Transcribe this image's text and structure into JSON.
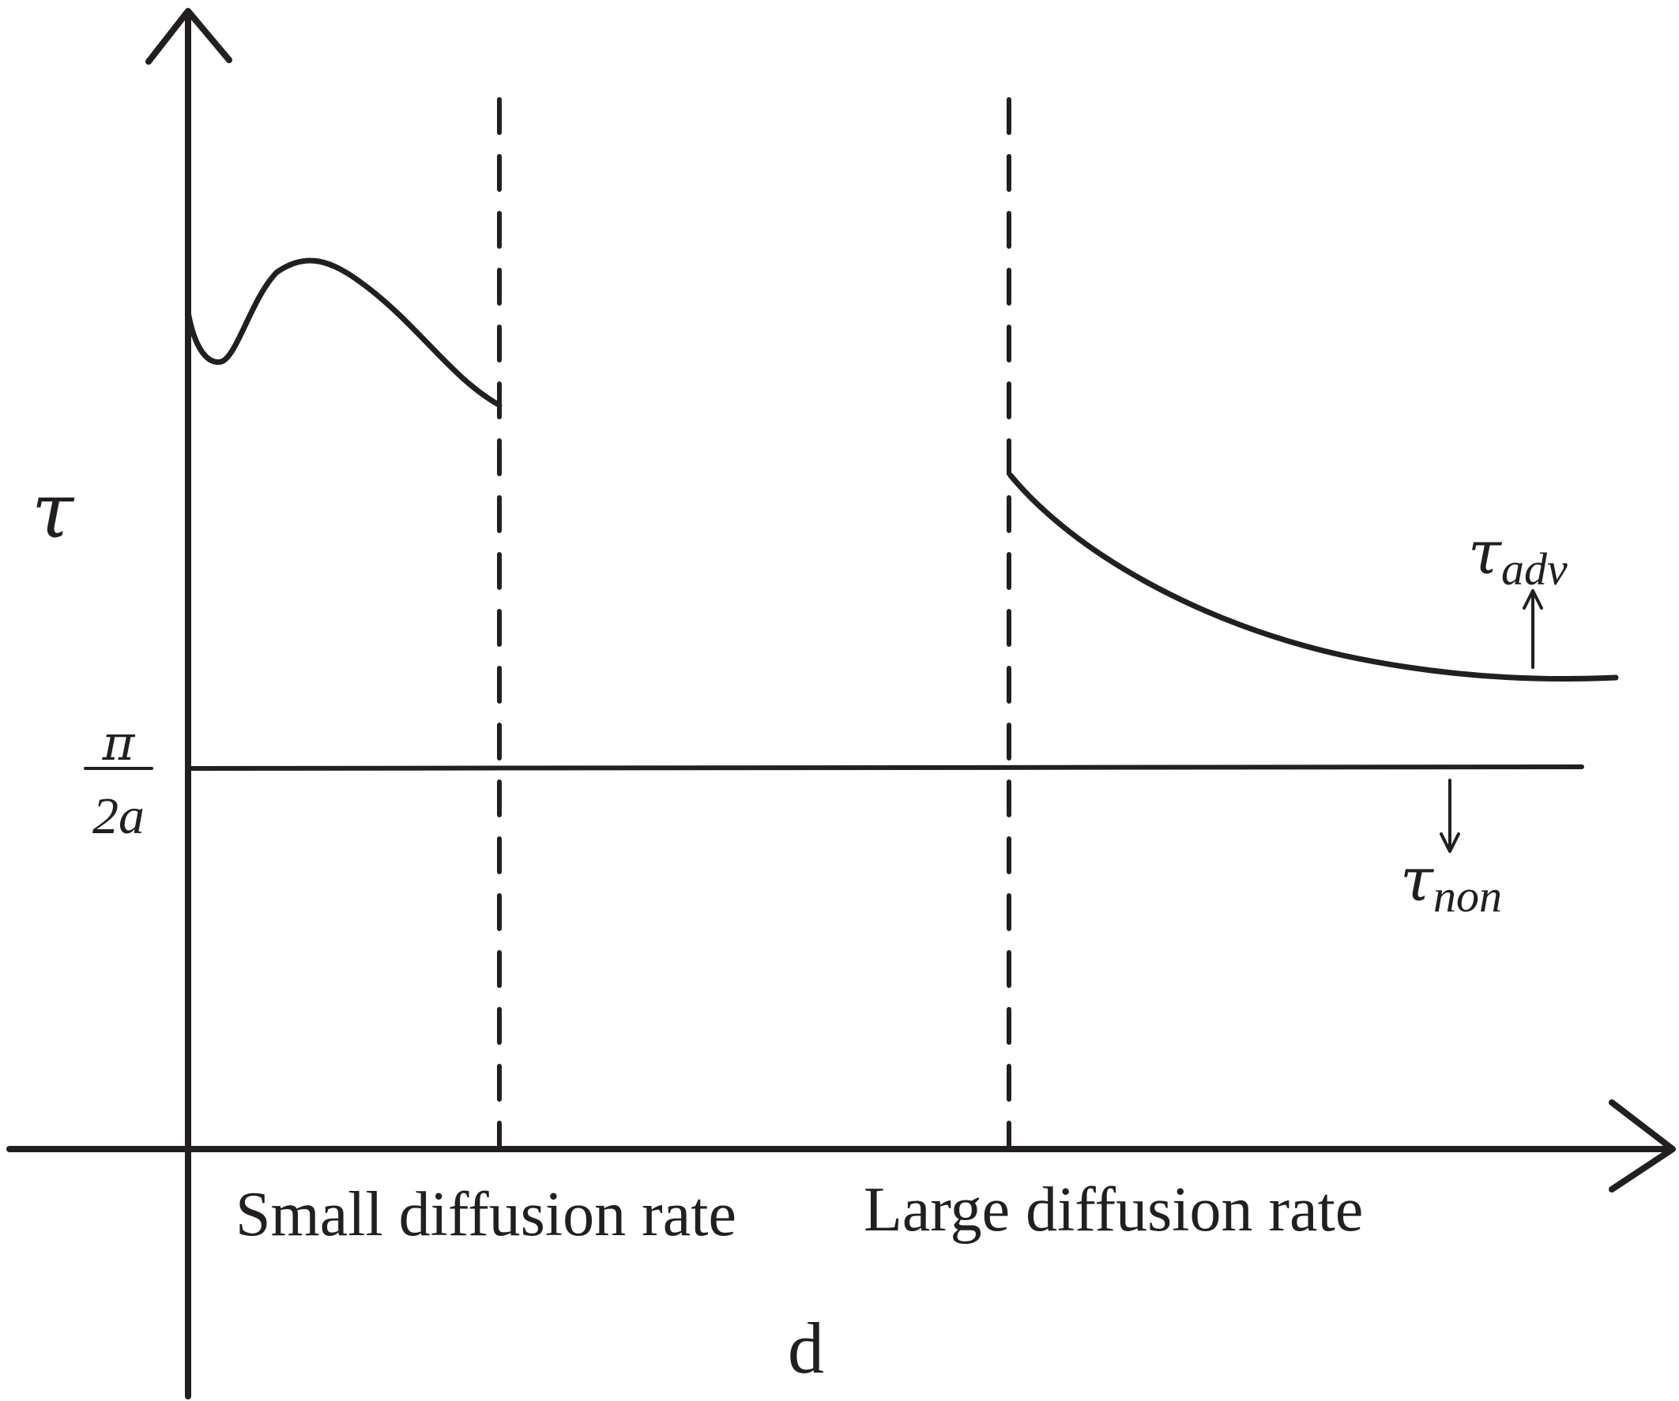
{
  "diagram": {
    "y_axis_label": "τ",
    "x_axis_label": "d",
    "baseline_label": {
      "numerator": "π",
      "denominator": "2a"
    },
    "regions": [
      {
        "label": "Small diffusion rate"
      },
      {
        "label": "Large diffusion rate"
      }
    ],
    "curves": {
      "advection": {
        "symbol": "τ",
        "subscript": "adv"
      },
      "no_advection": {
        "symbol": "τ",
        "subscript": "non"
      }
    },
    "colors": {
      "ink": "#231f20",
      "background": "#ffffff"
    }
  }
}
